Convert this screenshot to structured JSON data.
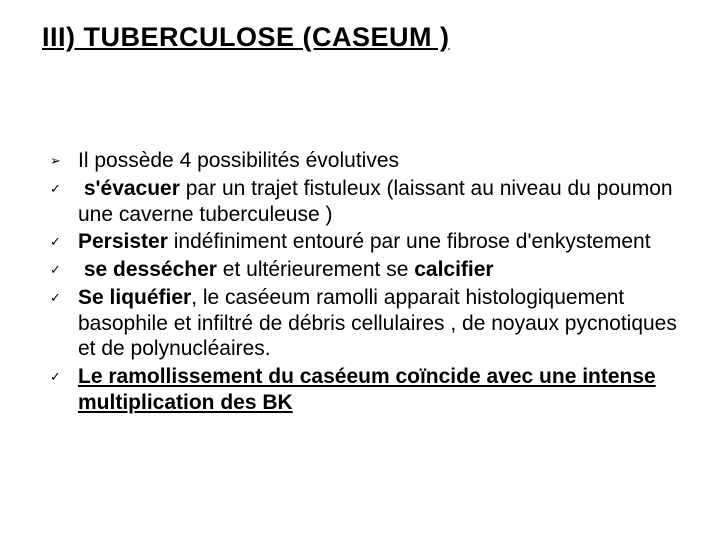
{
  "title": "III) TUBERCULOSE (CASEUM )",
  "colors": {
    "background": "#ffffff",
    "text": "#000000",
    "title": "#000000"
  },
  "typography": {
    "title_fontsize_pt": 20,
    "title_weight": "bold",
    "title_underline": true,
    "body_fontsize_pt": 16,
    "body_font": "Arial"
  },
  "items": [
    {
      "bullet": "arrow",
      "text": "Il possède 4 possibilités évolutives"
    },
    {
      "bullet": "check",
      "lead": "s'évacuer",
      "rest": " par un trajet fistuleux (laissant au niveau du poumon une caverne tuberculeuse )"
    },
    {
      "bullet": "check",
      "lead": "Persister",
      "rest": " indéfiniment entouré par une fibrose d'enkystement"
    },
    {
      "bullet": "check",
      "lead": "se dessécher",
      "mid": " et ultérieurement se ",
      "lead2": "calcifier"
    },
    {
      "bullet": "check",
      "lead": "Se liquéfier",
      "rest": ", le caséeum ramolli apparait histologiquement basophile et infiltré de  débris cellulaires , de noyaux pycnotiques et de polynucléaires."
    },
    {
      "bullet": "check",
      "text": "Le ramollissement du caséeum coïncide avec une intense multiplication des BK ",
      "bold": true,
      "underline": true
    }
  ]
}
